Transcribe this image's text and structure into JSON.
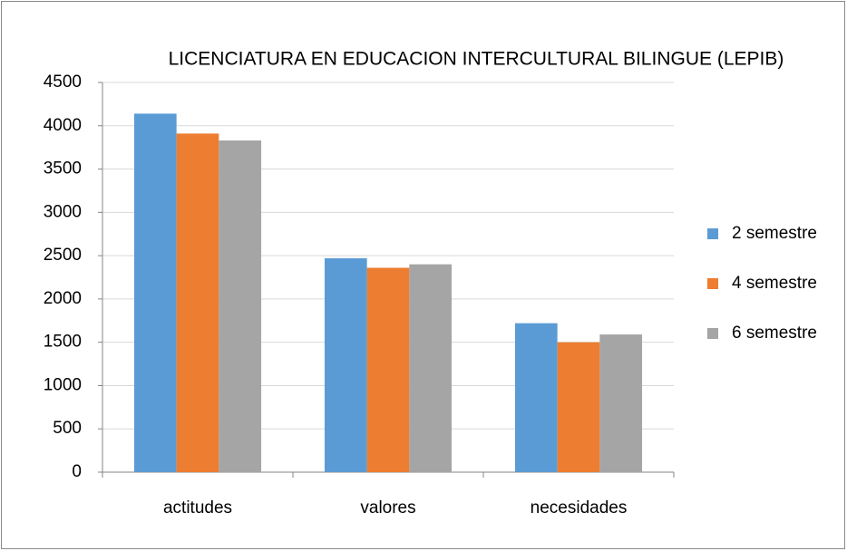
{
  "chart_data": {
    "type": "bar",
    "title": "LICENCIATURA EN EDUCACION INTERCULTURAL BILINGUE (LEPIB)",
    "categories": [
      "actitudes",
      "valores",
      "necesidades"
    ],
    "series": [
      {
        "name": "2 semestre",
        "color": "#5b9bd5",
        "values": [
          4140,
          2470,
          1720
        ]
      },
      {
        "name": "4 semestre",
        "color": "#ed7d31",
        "values": [
          3910,
          2360,
          1500
        ]
      },
      {
        "name": "6 semestre",
        "color": "#a5a5a5",
        "values": [
          3830,
          2400,
          1590
        ]
      }
    ],
    "ylim": [
      0,
      4500
    ],
    "yticks": [
      0,
      500,
      1000,
      1500,
      2000,
      2500,
      3000,
      3500,
      4000,
      4500
    ],
    "grid": true,
    "legend": "right"
  }
}
